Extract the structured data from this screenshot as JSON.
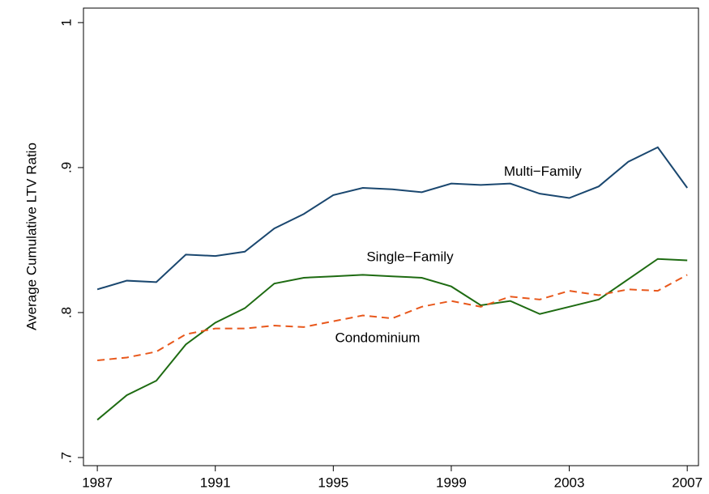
{
  "chart_data": {
    "type": "line",
    "ylabel": "Average Cumulative LTV Ratio",
    "x": [
      1987,
      1988,
      1989,
      1990,
      1991,
      1992,
      1993,
      1994,
      1995,
      1996,
      1997,
      1998,
      1999,
      2000,
      2001,
      2002,
      2003,
      2004,
      2005,
      2006,
      2007
    ],
    "xlim": [
      1986.53,
      2007.38
    ],
    "xticks": [
      1987,
      1991,
      1995,
      1999,
      2003,
      2007
    ],
    "ylim": [
      0.6944,
      1.01
    ],
    "yticks": [
      {
        "value": 0.7,
        "label": ".7"
      },
      {
        "value": 0.8,
        "label": ".8"
      },
      {
        "value": 0.9,
        "label": ".9"
      },
      1
    ],
    "series": [
      {
        "name": "Multi−Family",
        "color": "#1a476f",
        "dashed": false,
        "values": [
          0.816,
          0.822,
          0.821,
          0.84,
          0.839,
          0.842,
          0.858,
          0.868,
          0.881,
          0.886,
          0.885,
          0.883,
          0.889,
          0.888,
          0.889,
          0.882,
          0.879,
          0.887,
          0.904,
          0.914,
          0.886
        ]
      },
      {
        "name": "Single−Family",
        "color": "#1e6b12",
        "dashed": false,
        "values": [
          0.726,
          0.743,
          0.753,
          0.778,
          0.793,
          0.803,
          0.82,
          0.824,
          0.825,
          0.826,
          0.825,
          0.824,
          0.818,
          0.805,
          0.808,
          0.799,
          0.804,
          0.809,
          0.823,
          0.837,
          0.836
        ]
      },
      {
        "name": "Condominium",
        "color": "#e8581c",
        "dashed": true,
        "values": [
          0.767,
          0.769,
          0.773,
          0.785,
          0.789,
          0.789,
          0.791,
          0.79,
          0.794,
          0.798,
          0.796,
          0.804,
          0.808,
          0.804,
          0.811,
          0.809,
          0.815,
          0.812,
          0.816,
          0.815,
          0.826
        ]
      }
    ]
  }
}
